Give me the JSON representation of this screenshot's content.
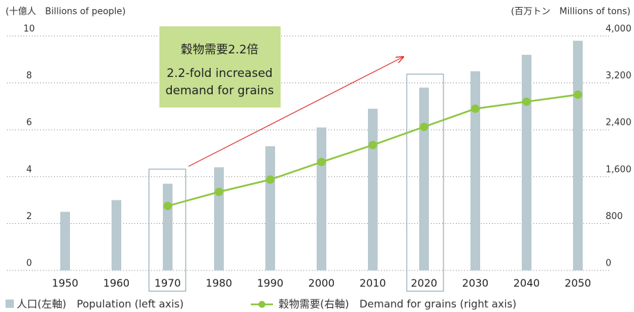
{
  "chart_data": {
    "type": "bar_line",
    "y_label": "(十億人　Billions of people)",
    "y2_label": "(百万トン　Millions of tons)",
    "categories": [
      "1950",
      "1960",
      "1970",
      "1980",
      "1990",
      "2000",
      "2010",
      "2020",
      "2030",
      "2040",
      "2050"
    ],
    "series": [
      {
        "name": "人口(左軸)　Population (left axis)",
        "type": "bar",
        "color": "#b9c9d0",
        "values": [
          2.5,
          3.0,
          3.7,
          4.4,
          5.3,
          6.1,
          6.9,
          7.8,
          8.5,
          9.2,
          9.8
        ]
      },
      {
        "name": "穀物需要(右軸)　Demand for grains (right axis)",
        "type": "line",
        "axis": "y2",
        "color": "#8dc63f",
        "values": [
          null,
          null,
          1100,
          1340,
          1550,
          1850,
          2140,
          2450,
          2760,
          2880,
          3000
        ]
      }
    ],
    "ylim": [
      0,
      10
    ],
    "yticks": [
      0,
      2,
      4,
      6,
      8,
      10
    ],
    "y2lim": [
      0,
      4000
    ],
    "y2ticks": [
      0,
      800,
      {
        "value": 1600,
        "label": "1,600"
      },
      {
        "value": 2400,
        "label": "2,400"
      },
      {
        "value": 3200,
        "label": "3,200"
      },
      {
        "value": 4000,
        "label": "4,000"
      }
    ],
    "grid": true,
    "annotations": [
      "穀物需要2.2倍",
      "2.2-fold increased",
      "demand for grains"
    ]
  }
}
